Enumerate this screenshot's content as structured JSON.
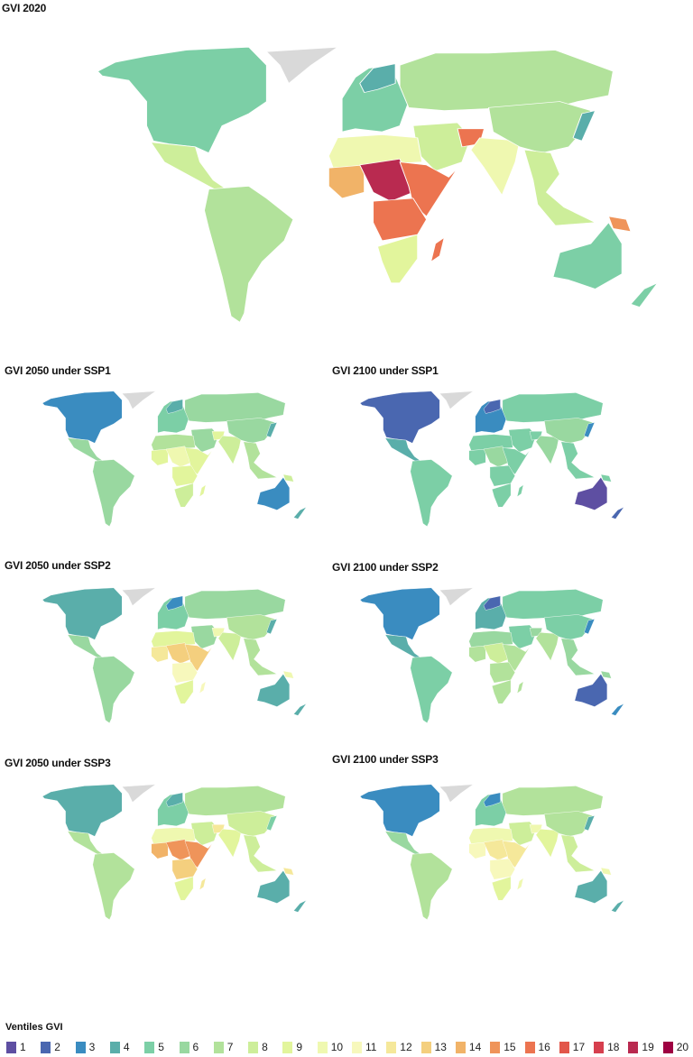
{
  "maps": [
    {
      "title": "GVI 2020",
      "ventiles": {
        "north_america": 5,
        "mexico_central": 8,
        "south_america": 7,
        "europe": 5,
        "scandinavia": 4,
        "russia": 7,
        "middle_east": 8,
        "afghanistan_pakistan": 16,
        "india": 10,
        "china": 7,
        "southeast_asia": 8,
        "japan": 4,
        "papua_new_guinea": 15,
        "north_africa": 10,
        "west_africa": 14,
        "central_sahel": 19,
        "east_africa": 16,
        "congo_basin": 16,
        "southern_africa": 9,
        "madagascar": 16,
        "australia": 5,
        "new_zealand": 5
      }
    },
    {
      "title": "GVI 2050 under SSP1",
      "ventiles": {
        "north_america": 3,
        "mexico_central": 6,
        "south_america": 6,
        "europe": 5,
        "scandinavia": 4,
        "russia": 6,
        "middle_east": 6,
        "afghanistan_pakistan": 9,
        "india": 8,
        "china": 6,
        "southeast_asia": 7,
        "japan": 4,
        "papua_new_guinea": 8,
        "north_africa": 7,
        "west_africa": 9,
        "central_sahel": 10,
        "east_africa": 9,
        "congo_basin": 9,
        "southern_africa": 8,
        "madagascar": 9,
        "australia": 3,
        "new_zealand": 4
      }
    },
    {
      "title": "GVI 2100 under SSP1",
      "ventiles": {
        "north_america": 2,
        "mexico_central": 4,
        "south_america": 5,
        "europe": 3,
        "scandinavia": 2,
        "russia": 5,
        "middle_east": 5,
        "afghanistan_pakistan": 5,
        "india": 6,
        "china": 6,
        "southeast_asia": 5,
        "japan": 3,
        "papua_new_guinea": 5,
        "north_africa": 5,
        "west_africa": 5,
        "central_sahel": 6,
        "east_africa": 5,
        "congo_basin": 5,
        "southern_africa": 5,
        "madagascar": 5,
        "australia": 1,
        "new_zealand": 2
      }
    },
    {
      "title": "GVI 2050 under SSP2",
      "ventiles": {
        "north_america": 4,
        "mexico_central": 6,
        "south_america": 6,
        "europe": 5,
        "scandinavia": 3,
        "russia": 6,
        "middle_east": 6,
        "afghanistan_pakistan": 10,
        "india": 8,
        "china": 7,
        "southeast_asia": 7,
        "japan": 4,
        "papua_new_guinea": 10,
        "north_africa": 9,
        "west_africa": 12,
        "central_sahel": 13,
        "east_africa": 13,
        "congo_basin": 11,
        "southern_africa": 9,
        "madagascar": 11,
        "australia": 4,
        "new_zealand": 4
      }
    },
    {
      "title": "GVI 2100 under SSP2",
      "ventiles": {
        "north_america": 3,
        "mexico_central": 4,
        "south_america": 5,
        "europe": 4,
        "scandinavia": 2,
        "russia": 5,
        "middle_east": 5,
        "afghanistan_pakistan": 6,
        "india": 7,
        "china": 5,
        "southeast_asia": 6,
        "japan": 3,
        "papua_new_guinea": 6,
        "north_africa": 6,
        "west_africa": 7,
        "central_sahel": 8,
        "east_africa": 7,
        "congo_basin": 7,
        "southern_africa": 7,
        "madagascar": 7,
        "australia": 2,
        "new_zealand": 3
      }
    },
    {
      "title": "GVI 2050 under SSP3",
      "ventiles": {
        "north_america": 4,
        "mexico_central": 7,
        "south_america": 7,
        "europe": 5,
        "scandinavia": 4,
        "russia": 7,
        "middle_east": 8,
        "afghanistan_pakistan": 12,
        "india": 9,
        "china": 8,
        "southeast_asia": 8,
        "japan": 5,
        "papua_new_guinea": 12,
        "north_africa": 10,
        "west_africa": 14,
        "central_sahel": 15,
        "east_africa": 15,
        "congo_basin": 13,
        "southern_africa": 9,
        "madagascar": 12,
        "australia": 4,
        "new_zealand": 4
      }
    },
    {
      "title": "GVI 2100 under SSP3",
      "ventiles": {
        "north_america": 3,
        "mexico_central": 6,
        "south_america": 7,
        "europe": 5,
        "scandinavia": 3,
        "russia": 7,
        "middle_east": 8,
        "afghanistan_pakistan": 10,
        "india": 9,
        "china": 7,
        "southeast_asia": 8,
        "japan": 4,
        "papua_new_guinea": 10,
        "north_africa": 10,
        "west_africa": 11,
        "central_sahel": 12,
        "east_africa": 12,
        "congo_basin": 11,
        "southern_africa": 9,
        "madagascar": 10,
        "australia": 4,
        "new_zealand": 4
      }
    }
  ],
  "no_data_color": "#d9d9d9",
  "legend": {
    "title": "Ventiles GVI",
    "items": [
      {
        "label": "1",
        "color": "#5e4fa2"
      },
      {
        "label": "2",
        "color": "#4a67b0"
      },
      {
        "label": "3",
        "color": "#3a8cc0"
      },
      {
        "label": "4",
        "color": "#5aaeaa"
      },
      {
        "label": "5",
        "color": "#7ccfa6"
      },
      {
        "label": "6",
        "color": "#99d8a0"
      },
      {
        "label": "7",
        "color": "#b2e29b"
      },
      {
        "label": "8",
        "color": "#cdee9a"
      },
      {
        "label": "9",
        "color": "#e2f59c"
      },
      {
        "label": "10",
        "color": "#eff8b0"
      },
      {
        "label": "11",
        "color": "#f7f8bc"
      },
      {
        "label": "12",
        "color": "#f5e89a"
      },
      {
        "label": "13",
        "color": "#f4cf7e"
      },
      {
        "label": "14",
        "color": "#f1b368"
      },
      {
        "label": "15",
        "color": "#ef945a"
      },
      {
        "label": "16",
        "color": "#ec7450"
      },
      {
        "label": "17",
        "color": "#e2564a"
      },
      {
        "label": "18",
        "color": "#d63f4e"
      },
      {
        "label": "19",
        "color": "#b92a50"
      },
      {
        "label": "20",
        "color": "#9e0142"
      }
    ]
  }
}
